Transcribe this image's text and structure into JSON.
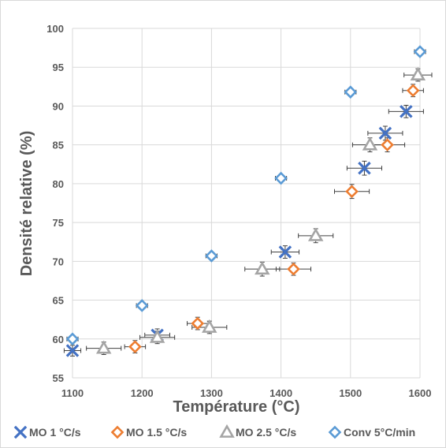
{
  "chart_data": {
    "type": "scatter",
    "xlabel": "Température (°C)",
    "ylabel": "Densité relative (%)",
    "xlim": [
      1100,
      1600
    ],
    "ylim": [
      55,
      100
    ],
    "x_ticks": [
      1100,
      1200,
      1300,
      1400,
      1500,
      1600
    ],
    "y_ticks": [
      55,
      60,
      65,
      70,
      75,
      80,
      85,
      90,
      95,
      100
    ],
    "grid": true,
    "legend_position": "bottom",
    "error_bars": true,
    "series": [
      {
        "name": "MO 1 °C/s",
        "marker": "x",
        "color": "#4472c4",
        "points": [
          {
            "x": 1100,
            "y": 58.5,
            "xerr": 12,
            "yerr": 0.7
          },
          {
            "x": 1222,
            "y": 60.5,
            "xerr": 18,
            "yerr": 0.8
          },
          {
            "x": 1406,
            "y": 71.2,
            "xerr": 20,
            "yerr": 0.8
          },
          {
            "x": 1520,
            "y": 82,
            "xerr": 25,
            "yerr": 0.9
          },
          {
            "x": 1550,
            "y": 86.5,
            "xerr": 25,
            "yerr": 0.9
          },
          {
            "x": 1580,
            "y": 89.3,
            "xerr": 25,
            "yerr": 0.8
          }
        ]
      },
      {
        "name": "MO 1.5 °C/s",
        "marker": "diamond",
        "color": "#ed7d31",
        "points": [
          {
            "x": 1190,
            "y": 59,
            "xerr": 15,
            "yerr": 0.8
          },
          {
            "x": 1280,
            "y": 62,
            "xerr": 15,
            "yerr": 0.8
          },
          {
            "x": 1418,
            "y": 69,
            "xerr": 25,
            "yerr": 0.8
          },
          {
            "x": 1502,
            "y": 79,
            "xerr": 25,
            "yerr": 0.9
          },
          {
            "x": 1553,
            "y": 85,
            "xerr": 25,
            "yerr": 0.9
          },
          {
            "x": 1590,
            "y": 92,
            "xerr": 15,
            "yerr": 0.8
          }
        ]
      },
      {
        "name": "MO 2.5 °C/s",
        "marker": "triangle",
        "color": "#a5a5a5",
        "points": [
          {
            "x": 1145,
            "y": 58.8,
            "xerr": 25,
            "yerr": 0.8
          },
          {
            "x": 1222,
            "y": 60.2,
            "xerr": 25,
            "yerr": 0.8
          },
          {
            "x": 1297,
            "y": 61.5,
            "xerr": 25,
            "yerr": 0.8
          },
          {
            "x": 1373,
            "y": 69,
            "xerr": 25,
            "yerr": 0.9
          },
          {
            "x": 1450,
            "y": 73.3,
            "xerr": 25,
            "yerr": 0.9
          },
          {
            "x": 1528,
            "y": 85,
            "xerr": 25,
            "yerr": 0.9
          },
          {
            "x": 1597,
            "y": 94,
            "xerr": 20,
            "yerr": 0.8
          }
        ]
      },
      {
        "name": "Conv 5°C/min",
        "marker": "diamond",
        "color": "#5b9bd5",
        "points": [
          {
            "x": 1100,
            "y": 60,
            "xerr": 8,
            "yerr": 0.3
          },
          {
            "x": 1200,
            "y": 64.3,
            "xerr": 8,
            "yerr": 0.3
          },
          {
            "x": 1300,
            "y": 70.7,
            "xerr": 8,
            "yerr": 0.3
          },
          {
            "x": 1400,
            "y": 80.7,
            "xerr": 8,
            "yerr": 0.3
          },
          {
            "x": 1500,
            "y": 91.8,
            "xerr": 8,
            "yerr": 0.3
          },
          {
            "x": 1600,
            "y": 97,
            "xerr": 8,
            "yerr": 0.3
          }
        ]
      }
    ]
  }
}
